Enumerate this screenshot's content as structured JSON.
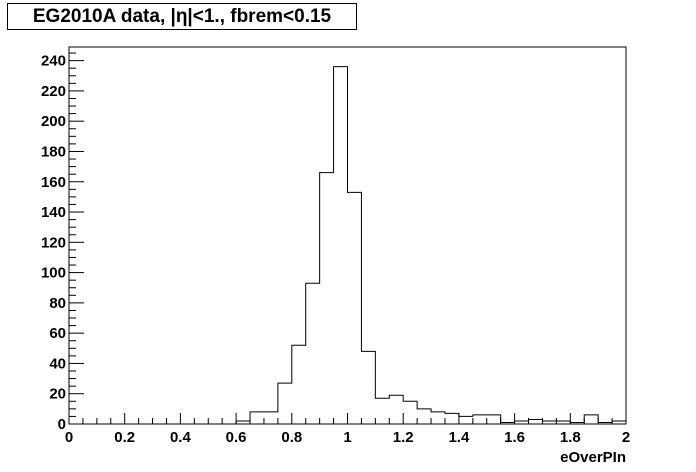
{
  "chart_data": {
    "type": "bar",
    "style": "step-histogram",
    "title": "EG2010A data, |η|<1., fbrem<0.15",
    "xlabel": "eOverPIn",
    "ylabel": "",
    "xlim": [
      0,
      2
    ],
    "ylim": [
      0,
      249
    ],
    "grid": false,
    "x_ticks": [
      0,
      0.2,
      0.4,
      0.6,
      0.8,
      1,
      1.2,
      1.4,
      1.6,
      1.8,
      2
    ],
    "x_tick_labels": [
      "0",
      "0.2",
      "0.4",
      "0.6",
      "0.8",
      "1",
      "1.2",
      "1.4",
      "1.6",
      "1.8",
      "2"
    ],
    "y_ticks": [
      0,
      20,
      40,
      60,
      80,
      100,
      120,
      140,
      160,
      180,
      200,
      220,
      240
    ],
    "y_tick_labels": [
      "0",
      "20",
      "40",
      "60",
      "80",
      "100",
      "120",
      "140",
      "160",
      "180",
      "200",
      "220",
      "240"
    ],
    "bin_edges": [
      0,
      0.05,
      0.1,
      0.15,
      0.2,
      0.25,
      0.3,
      0.35,
      0.4,
      0.45,
      0.5,
      0.55,
      0.6,
      0.65,
      0.7,
      0.75,
      0.8,
      0.85,
      0.9,
      0.95,
      1.0,
      1.05,
      1.1,
      1.15,
      1.2,
      1.25,
      1.3,
      1.35,
      1.4,
      1.45,
      1.5,
      1.55,
      1.6,
      1.65,
      1.7,
      1.75,
      1.8,
      1.85,
      1.9,
      1.95,
      2.0
    ],
    "values": [
      0,
      0,
      0,
      0,
      0,
      0,
      0,
      0,
      0,
      0,
      0,
      0,
      2,
      8,
      8,
      27,
      52,
      93,
      166,
      236,
      153,
      48,
      17,
      19,
      15,
      10,
      8,
      7,
      5,
      6,
      6,
      1,
      2,
      3,
      2,
      2,
      1,
      6,
      1,
      2
    ]
  }
}
